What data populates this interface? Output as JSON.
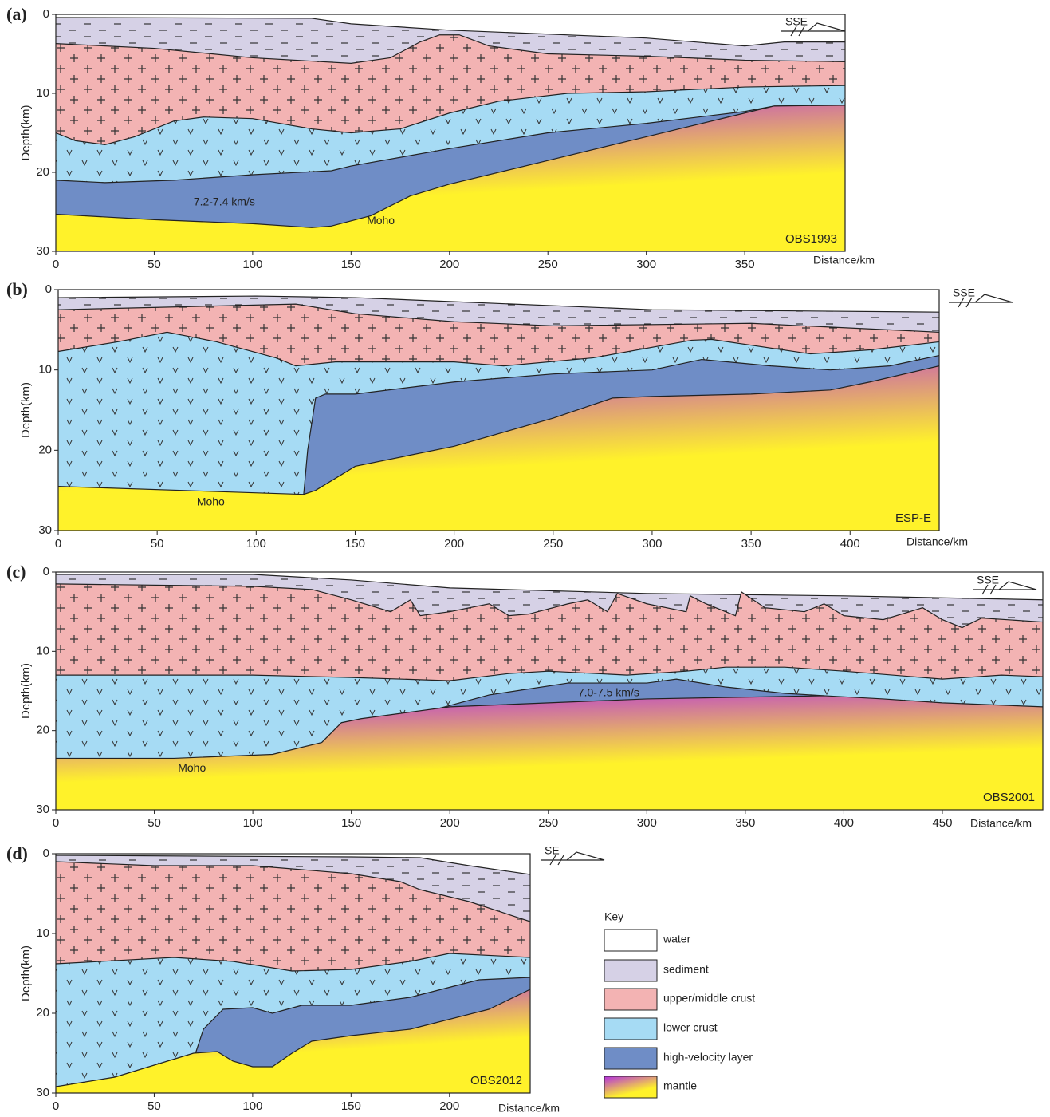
{
  "panels": [
    {
      "label": "(a)",
      "ylabel": "Depth(km)",
      "xlabel": "Distance/km",
      "name": "OBS1993",
      "direction": "SSE",
      "xlim": [
        0,
        401
      ],
      "ylim": [
        0,
        30
      ],
      "xticks": [
        0,
        50,
        100,
        150,
        200,
        250,
        300,
        350
      ],
      "yticks": [
        0,
        10,
        20,
        30
      ],
      "boundaries": [
        {
          "layer": 1,
          "points": [
            [
              0,
              0.4
            ],
            [
              130,
              0.5
            ],
            [
              150,
              1.2
            ],
            [
              200,
              2
            ],
            [
              300,
              3
            ],
            [
              350,
              4
            ],
            [
              370,
              3.5
            ],
            [
              401,
              3.5
            ]
          ]
        },
        {
          "layer": 2,
          "points": [
            [
              0,
              3.7
            ],
            [
              50,
              4.3
            ],
            [
              100,
              5.5
            ],
            [
              150,
              6.2
            ],
            [
              170,
              5.5
            ],
            [
              185,
              3.5
            ],
            [
              195,
              2.6
            ],
            [
              205,
              2.6
            ],
            [
              220,
              4
            ],
            [
              250,
              5
            ],
            [
              300,
              5.3
            ],
            [
              350,
              5.8
            ],
            [
              401,
              6
            ]
          ]
        },
        {
          "layer": 3,
          "points": [
            [
              0,
              15
            ],
            [
              10,
              16
            ],
            [
              25,
              16.5
            ],
            [
              40,
              15.5
            ],
            [
              60,
              13.5
            ],
            [
              75,
              13
            ],
            [
              100,
              13.2
            ],
            [
              130,
              14.5
            ],
            [
              150,
              15
            ],
            [
              175,
              14.5
            ],
            [
              200,
              12.5
            ],
            [
              225,
              11
            ],
            [
              260,
              10
            ],
            [
              300,
              9.8
            ],
            [
              350,
              9.2
            ],
            [
              401,
              9
            ]
          ]
        },
        {
          "layer": 4,
          "points": [
            [
              0,
              21
            ],
            [
              25,
              21.3
            ],
            [
              60,
              21
            ],
            [
              100,
              20.3
            ],
            [
              140,
              19.8
            ],
            [
              150,
              19.2
            ],
            [
              200,
              17
            ],
            [
              250,
              15
            ],
            [
              300,
              13.8
            ],
            [
              350,
              12.3
            ],
            [
              365,
              11.6
            ],
            [
              401,
              11.5
            ]
          ]
        },
        {
          "layer": 5,
          "points": [
            [
              0,
              25.3
            ],
            [
              50,
              26
            ],
            [
              100,
              26.5
            ],
            [
              130,
              27
            ],
            [
              140,
              26.8
            ],
            [
              160,
              25.5
            ],
            [
              180,
              23
            ],
            [
              200,
              21.5
            ],
            [
              250,
              18.5
            ],
            [
              300,
              15.5
            ],
            [
              350,
              12.5
            ],
            [
              365,
              11.6
            ],
            [
              401,
              11.5
            ]
          ]
        }
      ],
      "annotations": [
        {
          "text": "7.2-7.4 km/s",
          "at": [
            70,
            23.8
          ]
        },
        {
          "text": "Moho",
          "at": [
            158,
            26.2
          ]
        }
      ]
    },
    {
      "label": "(b)",
      "ylabel": "Depth(km)",
      "xlabel": "Distance/km",
      "name": "ESP-E",
      "direction": "SSE",
      "xlim": [
        0,
        445
      ],
      "ylim": [
        0,
        30
      ],
      "xticks": [
        0,
        50,
        100,
        150,
        200,
        250,
        300,
        350,
        400
      ],
      "yticks": [
        0,
        10,
        20,
        30
      ],
      "boundaries": [
        {
          "layer": 1,
          "points": [
            [
              0,
              1
            ],
            [
              100,
              0.8
            ],
            [
              150,
              1
            ],
            [
              200,
              1.5
            ],
            [
              300,
              2.5
            ],
            [
              445,
              2.8
            ]
          ]
        },
        {
          "layer": 2,
          "points": [
            [
              0,
              2.5
            ],
            [
              120,
              1.8
            ],
            [
              150,
              3
            ],
            [
              200,
              4
            ],
            [
              250,
              4.5
            ],
            [
              350,
              4.2
            ],
            [
              445,
              5.3
            ]
          ]
        },
        {
          "layer": 3,
          "points": [
            [
              0,
              7.7
            ],
            [
              30,
              6.5
            ],
            [
              55,
              5.3
            ],
            [
              80,
              6.5
            ],
            [
              110,
              8.5
            ],
            [
              120,
              9.5
            ],
            [
              140,
              9
            ],
            [
              200,
              9
            ],
            [
              225,
              9.5
            ],
            [
              270,
              8.5
            ],
            [
              320,
              6.3
            ],
            [
              330,
              6.2
            ],
            [
              380,
              8
            ],
            [
              410,
              7.5
            ],
            [
              445,
              6.5
            ]
          ]
        },
        {
          "layer": 4,
          "points": [
            [
              124,
              25.5
            ],
            [
              126,
              20
            ],
            [
              130,
              13.5
            ],
            [
              135,
              13
            ],
            [
              150,
              13
            ],
            [
              200,
              11.5
            ],
            [
              250,
              10.5
            ],
            [
              300,
              10
            ],
            [
              325,
              8.7
            ],
            [
              360,
              9.5
            ],
            [
              390,
              10
            ],
            [
              420,
              9.5
            ],
            [
              445,
              8.2
            ]
          ]
        },
        {
          "layer": 5,
          "points": [
            [
              0,
              24.5
            ],
            [
              124,
              25.5
            ],
            [
              130,
              25
            ],
            [
              150,
              22
            ],
            [
              200,
              19.5
            ],
            [
              250,
              16
            ],
            [
              280,
              13.5
            ],
            [
              300,
              13.3
            ],
            [
              350,
              13
            ],
            [
              390,
              12.5
            ],
            [
              410,
              11.5
            ],
            [
              445,
              9.5
            ]
          ]
        }
      ],
      "annotations": [
        {
          "text": "Moho",
          "at": [
            70,
            26.5
          ]
        }
      ]
    },
    {
      "label": "(c)",
      "ylabel": "Depth(km)",
      "xlabel": "Distance/km",
      "name": "OBS2001",
      "direction": "SSE",
      "xlim": [
        0,
        501
      ],
      "ylim": [
        0,
        30
      ],
      "xticks": [
        0,
        50,
        100,
        150,
        200,
        250,
        300,
        350,
        400,
        450
      ],
      "yticks": [
        0,
        10,
        20,
        30
      ],
      "boundaries": [
        {
          "layer": 1,
          "points": [
            [
              0,
              0.3
            ],
            [
              100,
              0.3
            ],
            [
              150,
              1
            ],
            [
              200,
              2
            ],
            [
              300,
              2.7
            ],
            [
              400,
              3
            ],
            [
              501,
              3.5
            ]
          ]
        },
        {
          "layer": 2,
          "points": [
            [
              0,
              1.5
            ],
            [
              100,
              1.8
            ],
            [
              130,
              2.2
            ],
            [
              150,
              3.5
            ],
            [
              170,
              5
            ],
            [
              180,
              3.5
            ],
            [
              185,
              5.5
            ],
            [
              200,
              5
            ],
            [
              220,
              4
            ],
            [
              230,
              5.5
            ],
            [
              240,
              5.3
            ],
            [
              260,
              4
            ],
            [
              270,
              3.5
            ],
            [
              280,
              5
            ],
            [
              285,
              2.7
            ],
            [
              300,
              4
            ],
            [
              320,
              5
            ],
            [
              322,
              3
            ],
            [
              330,
              4
            ],
            [
              345,
              5.5
            ],
            [
              348,
              2.5
            ],
            [
              360,
              4.5
            ],
            [
              380,
              5
            ],
            [
              390,
              4
            ],
            [
              400,
              5.5
            ],
            [
              420,
              6
            ],
            [
              440,
              4.5
            ],
            [
              450,
              6
            ],
            [
              460,
              7
            ],
            [
              470,
              5.8
            ],
            [
              501,
              6.3
            ]
          ]
        },
        {
          "layer": 3,
          "points": [
            [
              0,
              13
            ],
            [
              100,
              13
            ],
            [
              150,
              13.3
            ],
            [
              200,
              13.7
            ],
            [
              230,
              12.8
            ],
            [
              250,
              12.5
            ],
            [
              290,
              13
            ],
            [
              320,
              12.5
            ],
            [
              340,
              12
            ],
            [
              370,
              12
            ],
            [
              400,
              12.5
            ],
            [
              450,
              13.5
            ],
            [
              480,
              13
            ],
            [
              501,
              13.2
            ]
          ]
        },
        {
          "layer": 4,
          "points": [
            [
              190,
              17.5
            ],
            [
              220,
              15.5
            ],
            [
              260,
              14
            ],
            [
              300,
              14
            ],
            [
              315,
              13.5
            ],
            [
              340,
              14.5
            ],
            [
              370,
              15.3
            ],
            [
              390,
              15.6
            ]
          ]
        },
        {
          "layer": 5,
          "points": [
            [
              0,
              23.5
            ],
            [
              60,
              23.5
            ],
            [
              110,
              23
            ],
            [
              135,
              21.5
            ],
            [
              145,
              19
            ],
            [
              155,
              18.5
            ],
            [
              200,
              17
            ],
            [
              300,
              16
            ],
            [
              390,
              15.6
            ],
            [
              420,
              16
            ],
            [
              450,
              16.5
            ],
            [
              501,
              17
            ]
          ]
        }
      ],
      "annotations": [
        {
          "text": "7.0-7.5 km/s",
          "at": [
            265,
            15.3
          ]
        },
        {
          "text": "Moho",
          "at": [
            62,
            24.8
          ]
        }
      ]
    },
    {
      "label": "(d)",
      "ylabel": "Depth(km)",
      "xlabel": "Distance/km",
      "name": "OBS2012",
      "direction": "SE",
      "xlim": [
        0,
        241
      ],
      "ylim": [
        0,
        30
      ],
      "xticks": [
        0,
        50,
        100,
        150,
        200
      ],
      "yticks": [
        0,
        10,
        20,
        30
      ],
      "boundaries": [
        {
          "layer": 1,
          "points": [
            [
              0,
              0.2
            ],
            [
              150,
              0.4
            ],
            [
              185,
              0.5
            ],
            [
              210,
              1.5
            ],
            [
              241,
              2.6
            ]
          ]
        },
        {
          "layer": 2,
          "points": [
            [
              0,
              1
            ],
            [
              50,
              1.5
            ],
            [
              100,
              1.5
            ],
            [
              150,
              2.5
            ],
            [
              175,
              3.5
            ],
            [
              185,
              4.5
            ],
            [
              210,
              6
            ],
            [
              241,
              8.5
            ]
          ]
        },
        {
          "layer": 3,
          "points": [
            [
              0,
              13.8
            ],
            [
              60,
              13
            ],
            [
              90,
              13.5
            ],
            [
              120,
              14.7
            ],
            [
              150,
              14.5
            ],
            [
              180,
              13.5
            ],
            [
              200,
              12.5
            ],
            [
              241,
              13
            ]
          ]
        },
        {
          "layer": 4,
          "points": [
            [
              71,
              25
            ],
            [
              75,
              22
            ],
            [
              85,
              19.5
            ],
            [
              100,
              19.3
            ],
            [
              110,
              20
            ],
            [
              125,
              19
            ],
            [
              150,
              19
            ],
            [
              180,
              18
            ],
            [
              215,
              15.8
            ],
            [
              241,
              15.5
            ]
          ]
        },
        {
          "layer": 5,
          "points": [
            [
              0,
              29.2
            ],
            [
              30,
              28
            ],
            [
              50,
              26.5
            ],
            [
              70,
              25
            ],
            [
              82,
              24.8
            ],
            [
              90,
              26
            ],
            [
              100,
              26.7
            ],
            [
              110,
              26.7
            ],
            [
              120,
              25
            ],
            [
              130,
              23.5
            ],
            [
              150,
              22.8
            ],
            [
              180,
              22
            ],
            [
              220,
              19.5
            ],
            [
              241,
              17
            ]
          ]
        }
      ],
      "annotations": []
    }
  ],
  "key": {
    "title": "Key",
    "entries": [
      {
        "label": "water",
        "color": "#ffffff"
      },
      {
        "label": "sediment",
        "color": "#d6d1e6"
      },
      {
        "label": "upper/middle crust",
        "color": "#f3b3b3"
      },
      {
        "label": "lower crust",
        "color": "#a6dbf4"
      },
      {
        "label": "high-velocity layer",
        "color": "#6f8dc6"
      },
      {
        "label": "mantle",
        "color": [
          "#b32ee0",
          "#fff22a"
        ]
      }
    ]
  }
}
